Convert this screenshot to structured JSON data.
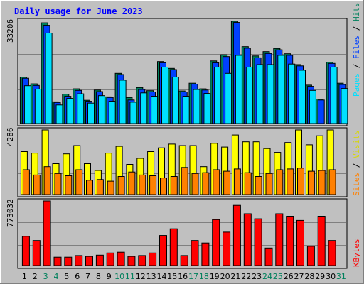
{
  "chart_data": {
    "type": "bar",
    "title": "Daily usage for June 2023",
    "categories": [
      "1",
      "2",
      "3",
      "4",
      "5",
      "6",
      "7",
      "8",
      "9",
      "10",
      "11",
      "12",
      "13",
      "14",
      "15",
      "16",
      "17",
      "18",
      "19",
      "20",
      "21",
      "22",
      "23",
      "24",
      "25",
      "26",
      "27",
      "28",
      "29",
      "30",
      "31"
    ],
    "weekend_days": [
      3,
      4,
      10,
      11,
      17,
      18,
      24,
      25,
      31
    ],
    "colors": {
      "hits": "#00805c",
      "files": "#0040ff",
      "pages": "#00e0ff",
      "visits": "#ffff00",
      "sites": "#ff8000",
      "kbytes": "#ff0000",
      "weekday_label": "#000000",
      "weekend_label": "#00805c"
    },
    "panels": [
      {
        "name": "hits-files-pages",
        "max_label": "33206",
        "ymax": 33206,
        "side_labels": [
          "Pages",
          "Files",
          "Hits"
        ],
        "series": [
          {
            "name": "Hits",
            "values": [
              15000,
              12800,
              32500,
              7000,
              9500,
              11200,
              7500,
              10800,
              8600,
              16200,
              8400,
              11600,
              10600,
              20000,
              17800,
              10500,
              13000,
              11200,
              20200,
              22200,
              33000,
              24800,
              21800,
              23200,
              24200,
              22500,
              19000,
              12400,
              7900,
              19800,
              13000
            ]
          },
          {
            "name": "Files",
            "values": [
              14600,
              12300,
              31700,
              6800,
              8800,
              10700,
              7200,
              10300,
              8400,
              15800,
              7600,
              11000,
              10200,
              19600,
              17400,
              10200,
              12700,
              10800,
              19600,
              21600,
              32600,
              24300,
              21200,
              22600,
              23800,
              22000,
              18600,
              12000,
              7600,
              19400,
              12600
            ]
          },
          {
            "name": "Pages",
            "values": [
              12200,
              11100,
              29200,
              6000,
              8100,
              9600,
              6600,
              9000,
              7200,
              14000,
              6900,
              9900,
              8800,
              18200,
              15000,
              8800,
              11000,
              9700,
              18200,
              16200,
              22000,
              18200,
              19000,
              19000,
              22000,
              19200,
              17200,
              10700,
              0,
              18200,
              11300
            ]
          }
        ]
      },
      {
        "name": "visits-sites",
        "max_label": "4286",
        "ymax": 4286,
        "side_labels": [
          "Sites",
          "Visits"
        ],
        "series": [
          {
            "name": "Visits",
            "values": [
              2850,
              2750,
              4286,
              2050,
              2700,
              3250,
              2050,
              1600,
              2750,
              3200,
              2000,
              2400,
              2850,
              3100,
              3350,
              3250,
              3250,
              1850,
              3400,
              3150,
              3950,
              3500,
              3500,
              3050,
              2800,
              3450,
              4286,
              3300,
              3900,
              4286,
              0
            ]
          },
          {
            "name": "Sites",
            "values": [
              1650,
              1300,
              1850,
              1400,
              1250,
              1650,
              950,
              1000,
              890,
              1200,
              1500,
              1300,
              1250,
              1100,
              1200,
              1800,
              1400,
              1450,
              1650,
              1550,
              1700,
              1450,
              1200,
              1400,
              1650,
              1700,
              1750,
              1550,
              1600,
              1650,
              0
            ]
          }
        ]
      },
      {
        "name": "kbytes",
        "max_label": "773032",
        "ymax": 773032,
        "side_labels": [
          "KBytes"
        ],
        "series": [
          {
            "name": "KBytes",
            "values": [
              350000,
              300000,
              773032,
              100000,
              100000,
              120000,
              110000,
              125000,
              150000,
              160000,
              110000,
              120000,
              150000,
              360000,
              440000,
              120000,
              300000,
              270000,
              550000,
              400000,
              720000,
              620000,
              560000,
              210000,
              620000,
              590000,
              540000,
              230000,
              590000,
              300000,
              0
            ]
          }
        ]
      }
    ]
  }
}
